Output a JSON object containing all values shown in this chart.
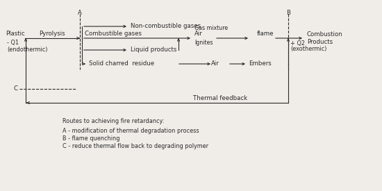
{
  "bg_color": "#f0ede8",
  "line_color": "#2a2a2a",
  "text_color": "#2a2a2a",
  "figsize": [
    5.5,
    2.75
  ],
  "dpi": 100,
  "labels": {
    "plastic": "Plastic",
    "pyrolysis": "Pyrolysis",
    "q1": "- Q1\n(endothermic)",
    "noncombustible": "Non-combustible gases",
    "combustible": "Combustible gases",
    "liquid": "Liquid products",
    "air1": "Air",
    "gas_mixture": "Gas mixture",
    "ignites": "Ignites",
    "flame": "flame",
    "q2": "+ Q2",
    "exothermic": "(exothermic)",
    "combustion_products": "Combustion\nProducts",
    "solid_charred": "Solid charred  residue",
    "air2": "Air",
    "embers": "Embers",
    "thermal_feedback": "Thermal feedback",
    "A": "A",
    "B": "B",
    "C": "C",
    "legend_title": "Routes to achieving fire retardancy:",
    "legend_A": "A - modification of thermal degradation process",
    "legend_B": "B - flame quenching",
    "legend_C": "C - reduce thermal flow back to degrading polymer"
  }
}
